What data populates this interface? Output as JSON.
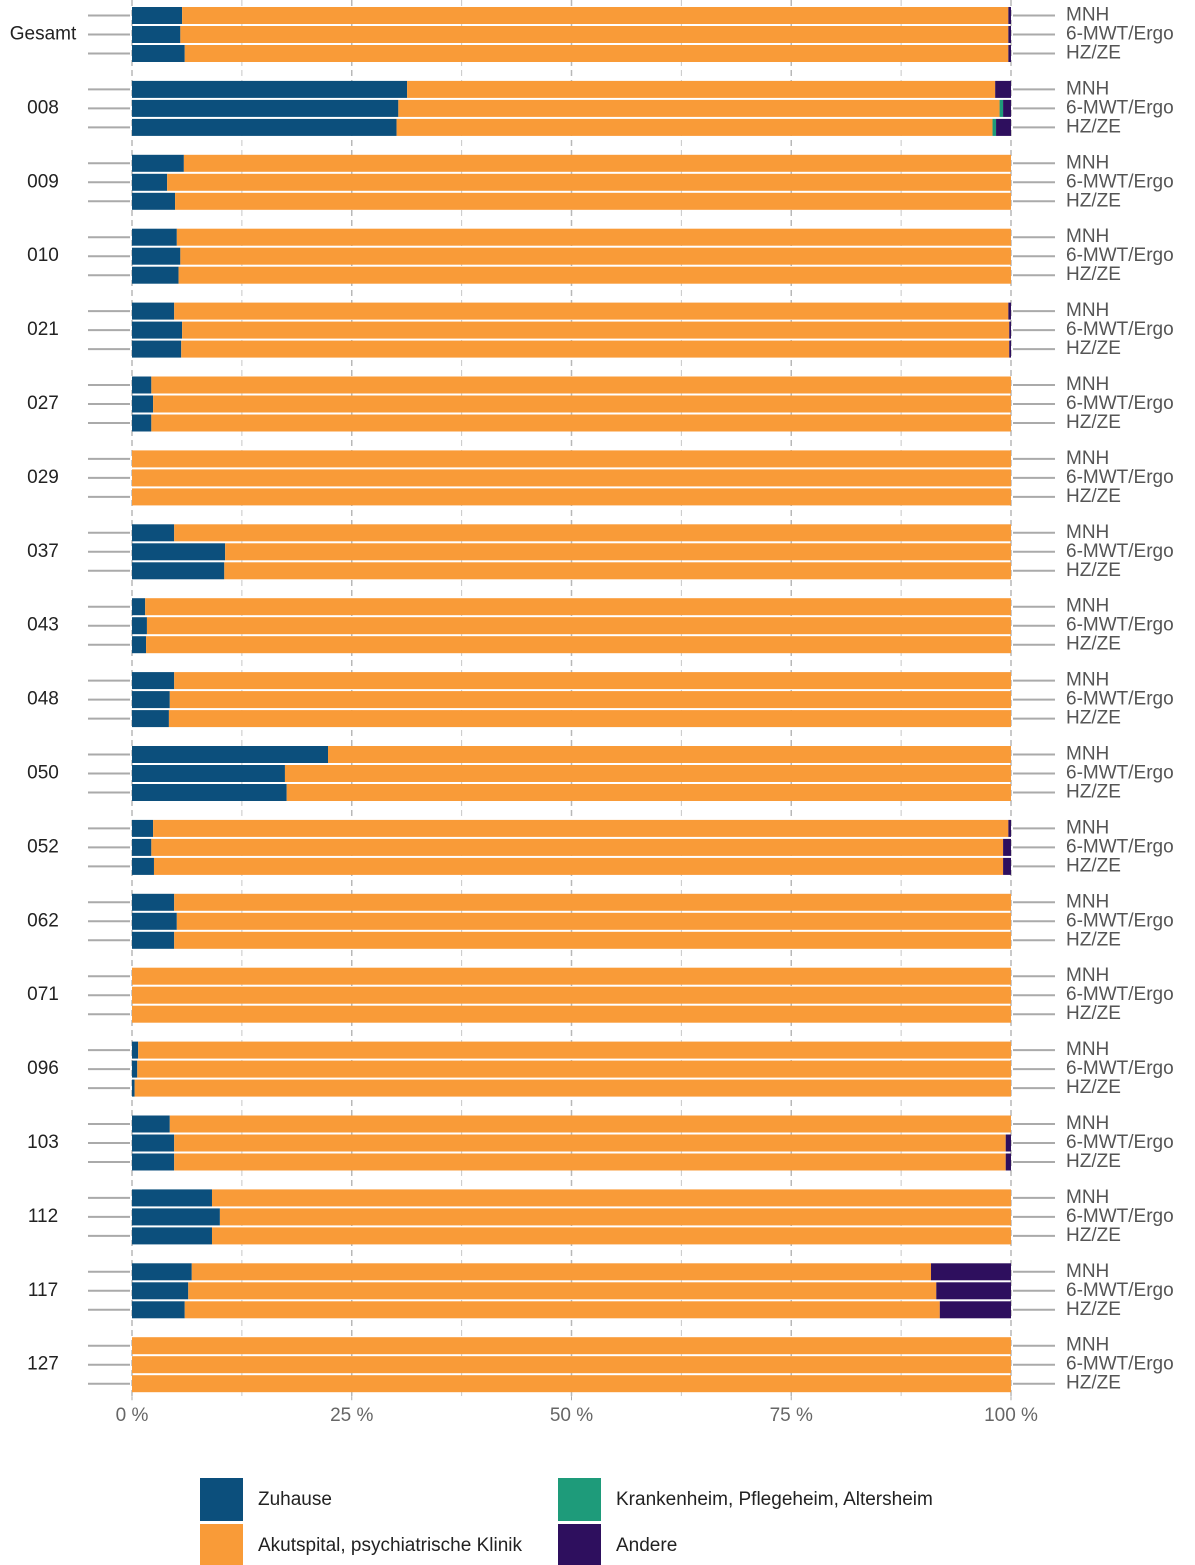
{
  "chart_data": {
    "type": "stacked-barh-grouped",
    "groups": [
      "Gesamt",
      "008",
      "009",
      "010",
      "021",
      "027",
      "029",
      "037",
      "043",
      "048",
      "050",
      "052",
      "062",
      "071",
      "096",
      "103",
      "112",
      "117",
      "127"
    ],
    "subcategories": [
      "MNH",
      "6-MWT/Ergo",
      "HZ/ZE"
    ],
    "series": [
      {
        "name": "Zuhause",
        "color": "#0c4f7c",
        "values": [
          [
            5.7,
            5.5,
            6.0
          ],
          [
            31.3,
            30.3,
            30.1
          ],
          [
            5.9,
            4.0,
            4.9
          ],
          [
            5.1,
            5.5,
            5.3
          ],
          [
            4.8,
            5.7,
            5.6
          ],
          [
            2.2,
            2.4,
            2.2
          ],
          [
            0,
            0,
            0
          ],
          [
            4.8,
            10.6,
            10.5
          ],
          [
            1.5,
            1.7,
            1.6
          ],
          [
            4.8,
            4.3,
            4.2
          ],
          [
            22.3,
            17.4,
            17.6
          ],
          [
            2.4,
            2.2,
            2.5
          ],
          [
            4.8,
            5.1,
            4.8
          ],
          [
            0,
            0,
            0
          ],
          [
            0.7,
            0.6,
            0.3
          ],
          [
            4.3,
            4.8,
            4.8
          ],
          [
            9.1,
            10.0,
            9.1
          ],
          [
            6.8,
            6.4,
            6.0
          ],
          [
            0,
            0,
            0
          ]
        ]
      },
      {
        "name": "Akutspital, psychiatrische Klinik",
        "color": "#f99b38",
        "values": [
          [
            94.0,
            94.2,
            93.7
          ],
          [
            66.9,
            68.4,
            67.8
          ],
          [
            94.1,
            96.0,
            95.1
          ],
          [
            94.9,
            94.5,
            94.7
          ],
          [
            94.9,
            94.1,
            94.2
          ],
          [
            97.8,
            97.6,
            97.8
          ],
          [
            100,
            100,
            100
          ],
          [
            95.2,
            89.4,
            89.5
          ],
          [
            98.5,
            98.3,
            98.4
          ],
          [
            95.2,
            95.7,
            95.8
          ],
          [
            77.7,
            82.6,
            82.4
          ],
          [
            97.3,
            96.9,
            96.6
          ],
          [
            95.2,
            94.9,
            95.2
          ],
          [
            100,
            100,
            100
          ],
          [
            99.3,
            99.4,
            99.7
          ],
          [
            95.7,
            94.6,
            94.6
          ],
          [
            90.9,
            90.0,
            90.9
          ],
          [
            84.1,
            85.1,
            85.9
          ],
          [
            100,
            100,
            100
          ]
        ]
      },
      {
        "name": "Krankenheim, Pflegeheim, Altersheim",
        "color": "#1e9b7a",
        "values": [
          [
            0,
            0,
            0
          ],
          [
            0,
            0.4,
            0.4
          ],
          [
            0,
            0,
            0
          ],
          [
            0,
            0,
            0
          ],
          [
            0,
            0,
            0
          ],
          [
            0,
            0,
            0
          ],
          [
            0,
            0,
            0
          ],
          [
            0,
            0,
            0
          ],
          [
            0,
            0,
            0
          ],
          [
            0,
            0,
            0
          ],
          [
            0,
            0,
            0
          ],
          [
            0,
            0,
            0
          ],
          [
            0,
            0,
            0
          ],
          [
            0,
            0,
            0
          ],
          [
            0,
            0,
            0
          ],
          [
            0,
            0,
            0
          ],
          [
            0,
            0,
            0
          ],
          [
            0,
            0,
            0
          ],
          [
            0,
            0,
            0
          ]
        ]
      },
      {
        "name": "Andere",
        "color": "#2e0f5e",
        "values": [
          [
            0.3,
            0.3,
            0.3
          ],
          [
            1.8,
            0.9,
            1.7
          ],
          [
            0,
            0,
            0
          ],
          [
            0,
            0,
            0
          ],
          [
            0.3,
            0.2,
            0.2
          ],
          [
            0,
            0,
            0
          ],
          [
            0,
            0,
            0
          ],
          [
            0,
            0,
            0
          ],
          [
            0,
            0,
            0
          ],
          [
            0,
            0,
            0
          ],
          [
            0,
            0,
            0
          ],
          [
            0.3,
            0.9,
            0.9
          ],
          [
            0,
            0,
            0
          ],
          [
            0,
            0,
            0
          ],
          [
            0,
            0,
            0
          ],
          [
            0,
            0.6,
            0.6
          ],
          [
            0,
            0,
            0
          ],
          [
            9.1,
            8.5,
            8.1
          ],
          [
            0,
            0,
            0
          ]
        ]
      }
    ],
    "xlim": [
      0,
      100
    ],
    "xticks": [
      {
        "value": 0,
        "label": "0 %"
      },
      {
        "value": 25,
        "label": "25 %"
      },
      {
        "value": 50,
        "label": "50 %"
      },
      {
        "value": 75,
        "label": "75 %"
      },
      {
        "value": 100,
        "label": "100 %"
      }
    ],
    "xminor": [
      12.5,
      37.5,
      62.5,
      87.5
    ],
    "grid": true
  }
}
